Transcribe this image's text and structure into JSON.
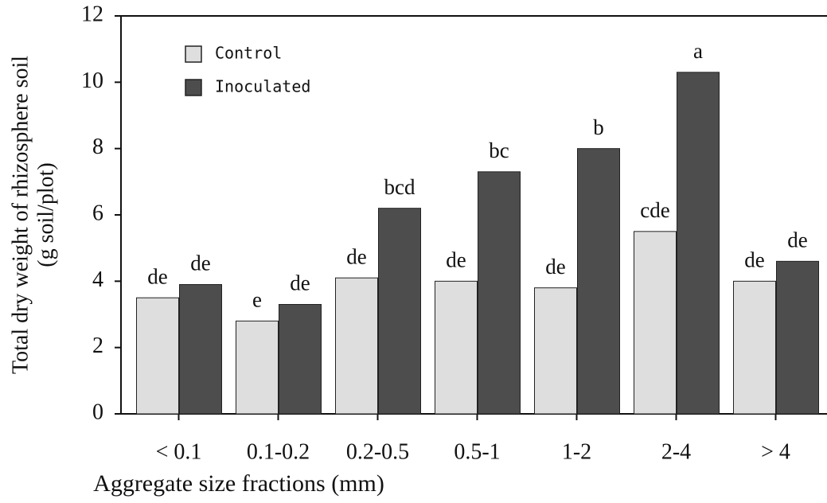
{
  "chart_data": {
    "type": "bar",
    "xlabel": "Aggregate size fractions (mm)",
    "ylabel": [
      "Total dry weight of rhizosphere soil",
      "(g soil/plot)"
    ],
    "categories": [
      "< 0.1",
      "0.1-0.2",
      "0.2-0.5",
      "0.5-1",
      "1-2",
      "2-4",
      "> 4"
    ],
    "series": [
      {
        "name": "Control",
        "color": "#dedede",
        "values": [
          3.5,
          2.8,
          4.1,
          4.0,
          3.8,
          5.5,
          4.0
        ],
        "letters": [
          "de",
          "e",
          "de",
          "de",
          "de",
          "cde",
          "de"
        ]
      },
      {
        "name": "Inoculated",
        "color": "#4d4d4d",
        "values": [
          3.9,
          3.3,
          6.2,
          7.3,
          8.0,
          10.3,
          4.6
        ],
        "letters": [
          "de",
          "de",
          "bcd",
          "bc",
          "b",
          "a",
          "de"
        ]
      }
    ],
    "ylim": [
      0,
      12
    ],
    "yticks": [
      0,
      2,
      4,
      6,
      8,
      10,
      12
    ],
    "legend": "upper left"
  }
}
